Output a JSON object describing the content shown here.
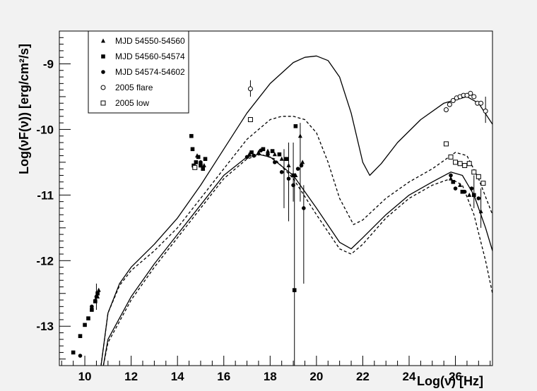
{
  "chart_data": {
    "type": "scatter",
    "title": "",
    "xlabel": "Log(ν) [Hz]",
    "ylabel": "Log(νF(ν)) [erg/cm²/s]",
    "xlim": [
      8.9,
      27.6
    ],
    "ylim": [
      -13.6,
      -8.5
    ],
    "grid": false,
    "legend_position": "top-left",
    "x_ticks": [
      "10",
      "12",
      "14",
      "16",
      "18",
      "20",
      "22",
      "24",
      "26"
    ],
    "y_ticks": [
      "-9",
      "-10",
      "-11",
      "-12",
      "-13"
    ],
    "legend": [
      {
        "label": "MJD 54550-54560",
        "marker": "triangle"
      },
      {
        "label": "MJD 54560-54574",
        "marker": "square"
      },
      {
        "label": "MJD 54574-54602",
        "marker": "circle"
      },
      {
        "label": "2005 flare",
        "marker": "open-circle"
      },
      {
        "label": "2005 low",
        "marker": "open-square"
      }
    ],
    "series": [
      {
        "name": "MJD 54550-54560",
        "marker": "triangle",
        "points": [
          [
            10.45,
            -12.6
          ],
          [
            10.55,
            -12.55
          ],
          [
            10.6,
            -12.45
          ],
          [
            14.85,
            -10.4
          ],
          [
            15.0,
            -10.5
          ],
          [
            15.15,
            -10.55
          ],
          [
            17.1,
            -10.38
          ],
          [
            17.5,
            -10.35
          ],
          [
            17.9,
            -10.33
          ],
          [
            18.2,
            -10.38
          ],
          [
            18.5,
            -10.45
          ],
          [
            18.8,
            -10.55
          ],
          [
            19.1,
            -10.7
          ],
          [
            19.3,
            -10.1
          ],
          [
            19.4,
            -10.5
          ],
          [
            25.8,
            -10.75
          ],
          [
            26.2,
            -10.85
          ],
          [
            26.6,
            -11.0
          ],
          [
            27.1,
            -11.25
          ]
        ]
      },
      {
        "name": "MJD 54560-54574",
        "marker": "square",
        "points": [
          [
            9.5,
            -13.4
          ],
          [
            9.8,
            -13.15
          ],
          [
            10.0,
            -12.98
          ],
          [
            10.15,
            -12.88
          ],
          [
            10.3,
            -12.75
          ],
          [
            10.45,
            -12.62
          ],
          [
            10.55,
            -12.5
          ],
          [
            14.6,
            -10.1
          ],
          [
            14.65,
            -10.3
          ],
          [
            14.7,
            -10.55
          ],
          [
            14.8,
            -10.5
          ],
          [
            14.9,
            -10.42
          ],
          [
            15.0,
            -10.55
          ],
          [
            15.1,
            -10.6
          ],
          [
            15.2,
            -10.45
          ],
          [
            17.2,
            -10.35
          ],
          [
            17.7,
            -10.3
          ],
          [
            18.1,
            -10.33
          ],
          [
            18.4,
            -10.38
          ],
          [
            18.7,
            -10.45
          ],
          [
            19.0,
            -10.7
          ],
          [
            19.1,
            -9.95
          ],
          [
            19.05,
            -12.45
          ],
          [
            25.9,
            -10.8
          ],
          [
            26.3,
            -10.95
          ],
          [
            26.8,
            -11.0
          ]
        ]
      },
      {
        "name": "MJD 54574-54602",
        "marker": "circle",
        "points": [
          [
            9.8,
            -13.45
          ],
          [
            10.3,
            -12.7
          ],
          [
            10.5,
            -12.55
          ],
          [
            15.0,
            -10.5
          ],
          [
            17.0,
            -10.42
          ],
          [
            17.3,
            -10.4
          ],
          [
            17.6,
            -10.32
          ],
          [
            17.9,
            -10.38
          ],
          [
            18.2,
            -10.5
          ],
          [
            18.5,
            -10.65
          ],
          [
            18.8,
            -10.75
          ],
          [
            19.0,
            -10.85
          ],
          [
            19.2,
            -10.6
          ],
          [
            19.35,
            -10.55
          ],
          [
            19.45,
            -11.2
          ],
          [
            25.8,
            -10.7
          ],
          [
            26.0,
            -10.9
          ],
          [
            26.4,
            -10.95
          ],
          [
            26.7,
            -10.9
          ],
          [
            27.0,
            -11.05
          ]
        ]
      },
      {
        "name": "2005 flare",
        "marker": "open-circle",
        "points": [
          [
            17.15,
            -9.38
          ],
          [
            25.6,
            -9.7
          ],
          [
            25.75,
            -9.62
          ],
          [
            25.9,
            -9.56
          ],
          [
            26.05,
            -9.52
          ],
          [
            26.2,
            -9.5
          ],
          [
            26.35,
            -9.48
          ],
          [
            26.5,
            -9.48
          ],
          [
            26.65,
            -9.45
          ],
          [
            26.8,
            -9.5
          ],
          [
            26.95,
            -9.6
          ],
          [
            27.1,
            -9.6
          ],
          [
            27.3,
            -9.72
          ]
        ]
      },
      {
        "name": "2005 low",
        "marker": "open-square",
        "points": [
          [
            14.75,
            -10.58
          ],
          [
            17.15,
            -9.85
          ],
          [
            25.6,
            -10.22
          ],
          [
            25.8,
            -10.42
          ],
          [
            26.0,
            -10.5
          ],
          [
            26.2,
            -10.52
          ],
          [
            26.4,
            -10.55
          ],
          [
            26.6,
            -10.52
          ],
          [
            26.8,
            -10.65
          ],
          [
            27.0,
            -10.72
          ],
          [
            27.2,
            -10.82
          ]
        ]
      }
    ],
    "model_curves": [
      {
        "style": "solid-flare",
        "points": [
          [
            10.7,
            -13.6
          ],
          [
            11.0,
            -12.8
          ],
          [
            11.5,
            -12.35
          ],
          [
            12.0,
            -12.1
          ],
          [
            13.0,
            -11.75
          ],
          [
            14.0,
            -11.35
          ],
          [
            15.0,
            -10.85
          ],
          [
            16.0,
            -10.3
          ],
          [
            17.0,
            -9.75
          ],
          [
            18.0,
            -9.3
          ],
          [
            19.0,
            -8.98
          ],
          [
            19.5,
            -8.9
          ],
          [
            20.0,
            -8.88
          ],
          [
            20.5,
            -8.95
          ],
          [
            21.0,
            -9.2
          ],
          [
            21.5,
            -9.75
          ],
          [
            22.0,
            -10.5
          ],
          [
            22.3,
            -10.7
          ],
          [
            22.8,
            -10.52
          ],
          [
            23.5,
            -10.2
          ],
          [
            24.5,
            -9.85
          ],
          [
            25.5,
            -9.6
          ],
          [
            26.5,
            -9.5
          ],
          [
            27.0,
            -9.6
          ],
          [
            27.6,
            -9.92
          ]
        ]
      },
      {
        "style": "dashed",
        "points": [
          [
            10.7,
            -13.6
          ],
          [
            11.0,
            -12.8
          ],
          [
            11.5,
            -12.38
          ],
          [
            12.0,
            -12.15
          ],
          [
            13.0,
            -11.85
          ],
          [
            14.0,
            -11.5
          ],
          [
            15.0,
            -11.05
          ],
          [
            16.0,
            -10.6
          ],
          [
            17.0,
            -10.15
          ],
          [
            18.0,
            -9.85
          ],
          [
            18.5,
            -9.8
          ],
          [
            19.0,
            -9.8
          ],
          [
            19.5,
            -9.85
          ],
          [
            20.0,
            -10.05
          ],
          [
            20.5,
            -10.5
          ],
          [
            21.0,
            -11.05
          ],
          [
            21.6,
            -11.45
          ],
          [
            22.0,
            -11.38
          ],
          [
            23.0,
            -11.05
          ],
          [
            24.0,
            -10.8
          ],
          [
            25.0,
            -10.6
          ],
          [
            26.0,
            -10.35
          ],
          [
            26.5,
            -10.4
          ],
          [
            27.0,
            -10.75
          ],
          [
            27.6,
            -11.3
          ]
        ]
      },
      {
        "style": "solid-low",
        "points": [
          [
            10.8,
            -13.6
          ],
          [
            11.0,
            -13.2
          ],
          [
            12.0,
            -12.55
          ],
          [
            13.0,
            -12.05
          ],
          [
            14.0,
            -11.6
          ],
          [
            15.0,
            -11.15
          ],
          [
            16.0,
            -10.7
          ],
          [
            17.0,
            -10.42
          ],
          [
            17.5,
            -10.38
          ],
          [
            18.0,
            -10.42
          ],
          [
            19.0,
            -10.7
          ],
          [
            20.0,
            -11.2
          ],
          [
            21.0,
            -11.72
          ],
          [
            21.5,
            -11.82
          ],
          [
            22.0,
            -11.65
          ],
          [
            23.0,
            -11.3
          ],
          [
            24.0,
            -11.0
          ],
          [
            25.0,
            -10.8
          ],
          [
            25.8,
            -10.65
          ],
          [
            26.3,
            -10.7
          ],
          [
            26.8,
            -11.0
          ],
          [
            27.3,
            -11.5
          ],
          [
            27.6,
            -11.85
          ]
        ]
      },
      {
        "style": "dashed",
        "points": [
          [
            10.8,
            -13.6
          ],
          [
            11.0,
            -13.25
          ],
          [
            12.0,
            -12.6
          ],
          [
            13.0,
            -12.1
          ],
          [
            14.0,
            -11.65
          ],
          [
            15.0,
            -11.2
          ],
          [
            16.0,
            -10.75
          ],
          [
            17.0,
            -10.45
          ],
          [
            17.6,
            -10.38
          ],
          [
            18.2,
            -10.45
          ],
          [
            19.0,
            -10.75
          ],
          [
            20.0,
            -11.3
          ],
          [
            21.0,
            -11.82
          ],
          [
            21.5,
            -11.9
          ],
          [
            22.0,
            -11.75
          ],
          [
            23.0,
            -11.35
          ],
          [
            24.0,
            -11.05
          ],
          [
            25.0,
            -10.85
          ],
          [
            25.8,
            -10.75
          ],
          [
            26.3,
            -10.85
          ],
          [
            26.8,
            -11.3
          ],
          [
            27.3,
            -12.0
          ],
          [
            27.6,
            -12.5
          ]
        ]
      }
    ],
    "error_bars": [
      [
        19.05,
        -13.6,
        -10.7
      ],
      [
        19.45,
        -12.35,
        -10.85
      ],
      [
        19.3,
        -11.1,
        -9.9
      ],
      [
        18.8,
        -11.4,
        -10.2
      ],
      [
        18.6,
        -11.2,
        -10.3
      ],
      [
        19.0,
        -11.1,
        -10.2
      ],
      [
        17.15,
        -9.5,
        -9.25
      ],
      [
        10.5,
        -12.75,
        -12.35
      ],
      [
        27.1,
        -11.5,
        -10.9
      ],
      [
        27.3,
        -9.9,
        -9.5
      ],
      [
        26.8,
        -11.2,
        -10.7
      ]
    ],
    "colors": {
      "background": "#f2f2f2",
      "plot_bg": "#ffffff",
      "ink": "#000000"
    }
  }
}
